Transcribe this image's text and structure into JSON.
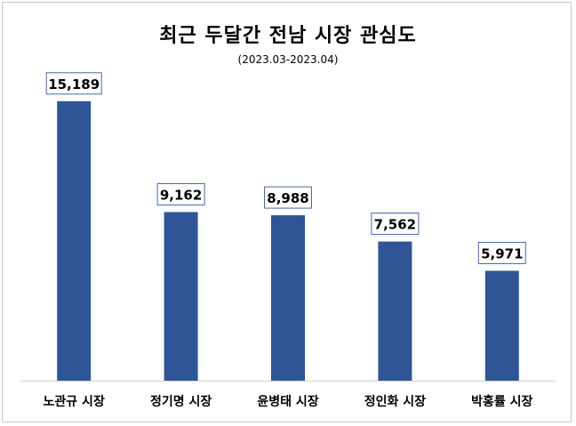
{
  "chart_data": {
    "type": "bar",
    "title": "최근 두달간 전남 시장 관심도",
    "subtitle": "(2023.03-2023.04)",
    "categories": [
      "노관규 시장",
      "정기명 시장",
      "윤병태 시장",
      "정인화 시장",
      "박홍률 시장"
    ],
    "values": [
      15189,
      9162,
      8988,
      7562,
      5971
    ],
    "value_labels": [
      "15,189",
      "9,162",
      "8,988",
      "7,562",
      "5,971"
    ],
    "xlabel": "",
    "ylabel": "",
    "ylim": [
      0,
      16000
    ],
    "grid": false,
    "legend": "none",
    "bar_color": "#2f5597"
  }
}
